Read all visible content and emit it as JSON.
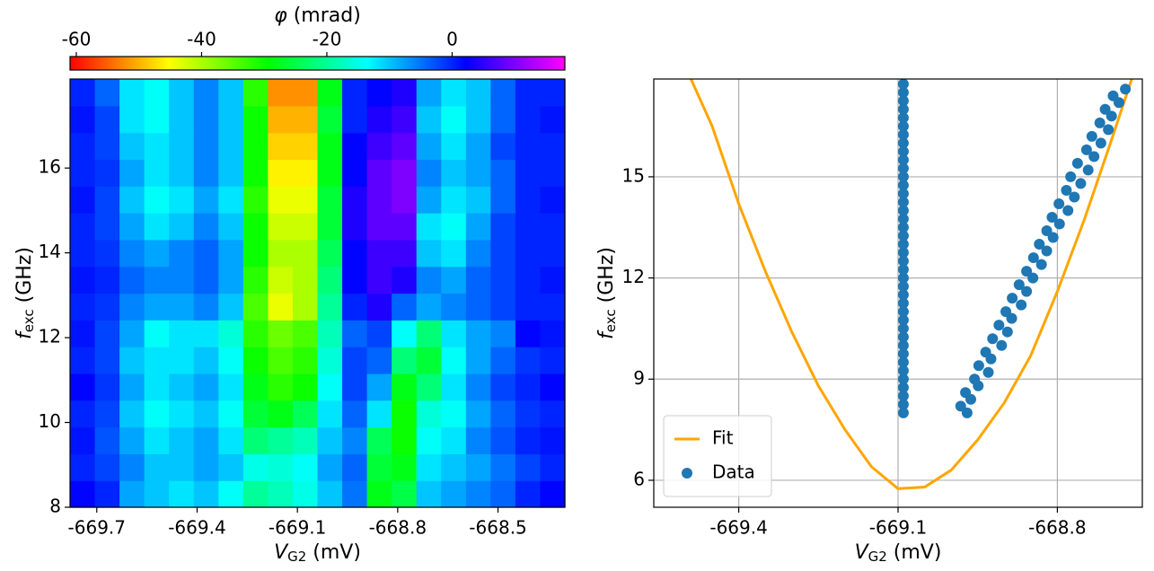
{
  "chart_data": [
    {
      "type": "heatmap",
      "xlim": [
        -669.78,
        -668.3
      ],
      "ylim": [
        8,
        18.1
      ],
      "xticks": [
        -669.7,
        -669.4,
        -669.1,
        -668.8,
        -668.5
      ],
      "yticks": [
        8,
        10,
        12,
        14,
        16
      ],
      "xlabel": {
        "symbol": "V",
        "subscript": "G2",
        "unit": " (mV)"
      },
      "ylabel": {
        "symbol": "f",
        "subscript": "exc",
        "unit": " (GHz)"
      },
      "colorbar": {
        "symbol": "φ",
        "unit": " (mrad)",
        "lim": [
          -61,
          18
        ],
        "ticks": [
          -60,
          -40,
          -20,
          0
        ],
        "colors": [
          "#ff0000",
          "#ffff00",
          "#00ff00",
          "#00ffff",
          "#0000ff",
          "#ff00ff"
        ]
      },
      "z": [
        [
          2,
          0,
          -8,
          -10,
          -12,
          -10,
          -14,
          -20,
          -18,
          -15,
          -10,
          -5,
          -28,
          -25,
          -10,
          -8,
          -6,
          -4,
          0,
          2
        ],
        [
          0,
          -2,
          -6,
          -10,
          -10,
          -8,
          -10,
          -15,
          -16,
          -14,
          -8,
          -4,
          -26,
          -28,
          -12,
          -10,
          -8,
          -5,
          -2,
          0
        ],
        [
          1,
          -3,
          -8,
          -12,
          -10,
          -8,
          -12,
          -22,
          -20,
          -18,
          -10,
          -6,
          -24,
          -30,
          -14,
          -12,
          -6,
          -3,
          0,
          1
        ],
        [
          0,
          -2,
          -10,
          -14,
          -12,
          -10,
          -14,
          -26,
          -28,
          -24,
          -12,
          -4,
          -12,
          -30,
          -16,
          -14,
          -8,
          -4,
          -1,
          0
        ],
        [
          2,
          -1,
          -8,
          -12,
          -10,
          -8,
          -12,
          -28,
          -32,
          -30,
          -14,
          -2,
          -8,
          -28,
          -22,
          -12,
          -6,
          -2,
          0,
          2
        ],
        [
          0,
          -2,
          -10,
          -12,
          -12,
          -10,
          -14,
          -30,
          -34,
          -32,
          -16,
          -2,
          -4,
          -22,
          -26,
          -14,
          -8,
          -4,
          -1,
          0
        ],
        [
          1,
          -2,
          -8,
          -14,
          -12,
          -12,
          -16,
          -32,
          -36,
          -34,
          -18,
          -4,
          -2,
          -14,
          -22,
          -12,
          -8,
          -6,
          2,
          1
        ],
        [
          0,
          -1,
          -6,
          -8,
          -8,
          -6,
          -10,
          -34,
          -44,
          -40,
          -20,
          0,
          4,
          -4,
          -8,
          -6,
          -4,
          -2,
          0,
          0
        ],
        [
          1,
          0,
          -4,
          -6,
          -6,
          -4,
          -8,
          -32,
          -42,
          -40,
          -22,
          2,
          6,
          4,
          -6,
          -8,
          -4,
          -2,
          0,
          1
        ],
        [
          0,
          -1,
          -6,
          -8,
          -6,
          -4,
          -8,
          -30,
          -40,
          -40,
          -24,
          2,
          6,
          6,
          -10,
          -12,
          -6,
          -2,
          0,
          0
        ],
        [
          0,
          -2,
          -8,
          -12,
          -10,
          -6,
          -10,
          -30,
          -42,
          -42,
          -26,
          4,
          8,
          8,
          -12,
          -14,
          -8,
          -2,
          0,
          0
        ],
        [
          1,
          -2,
          -10,
          -14,
          -12,
          -8,
          -12,
          -32,
          -44,
          -44,
          -26,
          4,
          8,
          10,
          -8,
          -12,
          -10,
          -4,
          0,
          1
        ],
        [
          0,
          -1,
          -8,
          -12,
          -10,
          -6,
          -10,
          -30,
          -46,
          -46,
          -28,
          2,
          8,
          10,
          -6,
          -10,
          -8,
          -4,
          0,
          0
        ],
        [
          0,
          -2,
          -10,
          -12,
          -10,
          -6,
          -10,
          -30,
          -48,
          -48,
          -28,
          2,
          6,
          8,
          -8,
          -12,
          -8,
          -2,
          0,
          0
        ],
        [
          1,
          -2,
          -12,
          -14,
          -10,
          -6,
          -10,
          -30,
          -50,
          -50,
          -26,
          0,
          4,
          6,
          -10,
          -14,
          -10,
          -4,
          0,
          1
        ],
        [
          0,
          -4,
          -12,
          -14,
          -10,
          -6,
          -10,
          -32,
          -52,
          -52,
          -28,
          0,
          2,
          4,
          -8,
          -12,
          -10,
          -4,
          0,
          0
        ]
      ]
    },
    {
      "type": "scatter",
      "xlim": [
        -669.56,
        -668.64
      ],
      "ylim": [
        5.2,
        17.9
      ],
      "xticks": [
        -669.4,
        -669.1,
        -668.8
      ],
      "yticks": [
        6,
        9,
        12,
        15
      ],
      "xlabel": {
        "symbol": "V",
        "subscript": "G2",
        "unit": " (mV)"
      },
      "ylabel": {
        "symbol": "f",
        "subscript": "exc",
        "unit": " (GHz)"
      },
      "grid": true,
      "legend": "lower left",
      "series": [
        {
          "name": "Fit",
          "type": "line",
          "color": "#ffa500",
          "x": [
            -669.49,
            -669.45,
            -669.4,
            -669.35,
            -669.3,
            -669.25,
            -669.2,
            -669.15,
            -669.1,
            -669.05,
            -669.0,
            -668.95,
            -668.9,
            -668.85,
            -668.8,
            -668.75,
            -668.7,
            -668.66
          ],
          "values": [
            17.9,
            16.5,
            14.2,
            12.2,
            10.4,
            8.8,
            7.5,
            6.4,
            5.75,
            5.8,
            6.3,
            7.2,
            8.3,
            9.7,
            11.6,
            13.7,
            16.0,
            17.9
          ]
        },
        {
          "name": "Data",
          "type": "scatter",
          "color": "#1f77b4",
          "x": [
            -669.09,
            -669.09,
            -669.09,
            -669.09,
            -669.09,
            -669.09,
            -669.09,
            -669.09,
            -669.09,
            -669.09,
            -669.09,
            -669.09,
            -669.09,
            -669.09,
            -669.09,
            -669.09,
            -669.09,
            -669.09,
            -669.09,
            -669.09,
            -669.09,
            -669.09,
            -669.09,
            -669.09,
            -669.09,
            -669.09,
            -669.09,
            -669.09,
            -669.09,
            -669.09,
            -669.09,
            -669.09,
            -669.09,
            -669.09,
            -669.09,
            -669.09,
            -669.09,
            -669.09,
            -669.09,
            -669.09,
            -668.97,
            -668.982,
            -668.963,
            -668.973,
            -668.949,
            -668.956,
            -668.93,
            -668.948,
            -668.925,
            -668.935,
            -668.905,
            -668.922,
            -668.894,
            -668.91,
            -668.886,
            -668.897,
            -668.868,
            -668.885,
            -668.858,
            -668.872,
            -668.846,
            -668.858,
            -668.83,
            -668.845,
            -668.82,
            -668.834,
            -668.808,
            -668.82,
            -668.796,
            -668.81,
            -668.78,
            -668.797,
            -668.768,
            -668.783,
            -668.756,
            -668.775,
            -668.742,
            -668.762,
            -668.731,
            -668.745,
            -668.718,
            -668.735,
            -668.704,
            -668.72,
            -668.698,
            -668.71,
            -668.684,
            -668.695,
            -668.672
          ],
          "values": [
            8.0,
            8.25,
            8.5,
            8.75,
            9.0,
            9.25,
            9.5,
            9.75,
            10.0,
            10.25,
            10.5,
            10.75,
            11.0,
            11.25,
            11.5,
            11.75,
            12.0,
            12.25,
            12.5,
            12.75,
            13.0,
            13.25,
            13.5,
            13.75,
            14.0,
            14.25,
            14.5,
            14.75,
            15.0,
            15.25,
            15.5,
            15.75,
            16.0,
            16.25,
            16.5,
            16.75,
            17.0,
            17.25,
            17.5,
            17.75,
            8.0,
            8.2,
            8.4,
            8.6,
            8.8,
            9.0,
            9.2,
            9.4,
            9.6,
            9.8,
            10.0,
            10.2,
            10.4,
            10.6,
            10.8,
            11.0,
            11.2,
            11.4,
            11.6,
            11.8,
            12.0,
            12.2,
            12.4,
            12.6,
            12.8,
            13.0,
            13.2,
            13.4,
            13.6,
            13.8,
            14.0,
            14.2,
            14.4,
            14.6,
            14.8,
            15.0,
            15.2,
            15.4,
            15.6,
            15.8,
            16.0,
            16.2,
            16.4,
            16.6,
            16.8,
            17.0,
            17.2,
            17.4,
            17.6
          ]
        }
      ]
    }
  ]
}
